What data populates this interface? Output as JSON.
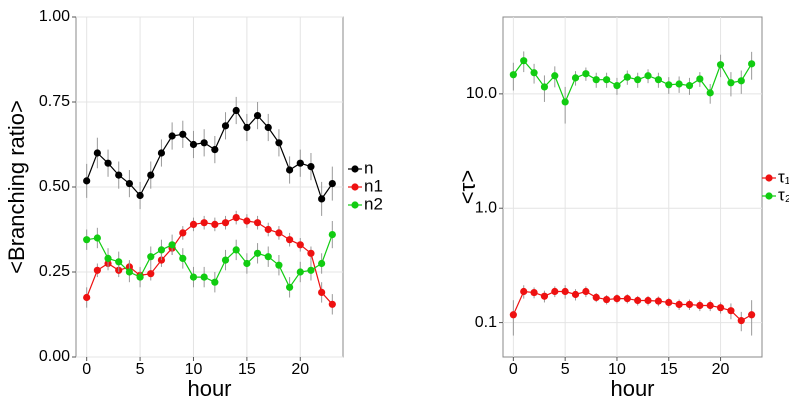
{
  "chart_data": [
    {
      "type": "line",
      "ylabel": "<Branching ratio>",
      "xlabel": "hour",
      "x": [
        0,
        1,
        2,
        3,
        4,
        5,
        6,
        7,
        8,
        9,
        10,
        11,
        12,
        13,
        14,
        15,
        16,
        17,
        18,
        19,
        20,
        21,
        22,
        23
      ],
      "xlim": [
        -1,
        24
      ],
      "xticks": [
        0,
        5,
        10,
        15,
        20
      ],
      "ylim": [
        0,
        1
      ],
      "yticks": [
        {
          "value": 0,
          "label": "0.00"
        },
        {
          "value": 0.25,
          "label": "0.25"
        },
        {
          "value": 0.5,
          "label": "0.50"
        },
        {
          "value": 0.75,
          "label": "0.75"
        },
        {
          "value": 1,
          "label": "1.00"
        }
      ],
      "grid": true,
      "legend": "right",
      "series": [
        {
          "name": "n",
          "color": "#000000",
          "values": [
            0.518,
            0.6,
            0.57,
            0.535,
            0.51,
            0.475,
            0.535,
            0.6,
            0.65,
            0.655,
            0.625,
            0.63,
            0.61,
            0.68,
            0.725,
            0.675,
            0.71,
            0.675,
            0.63,
            0.55,
            0.57,
            0.56,
            0.465,
            0.51
          ],
          "errors": [
            0.05,
            0.045,
            0.04,
            0.04,
            0.04,
            0.04,
            0.04,
            0.04,
            0.04,
            0.04,
            0.04,
            0.04,
            0.04,
            0.04,
            0.04,
            0.04,
            0.04,
            0.04,
            0.04,
            0.04,
            0.04,
            0.04,
            0.05,
            0.05
          ]
        },
        {
          "name": "n1",
          "color": "#ee1111",
          "values": [
            0.175,
            0.255,
            0.275,
            0.255,
            0.265,
            0.24,
            0.245,
            0.285,
            0.32,
            0.365,
            0.39,
            0.395,
            0.39,
            0.395,
            0.41,
            0.4,
            0.395,
            0.375,
            0.365,
            0.345,
            0.33,
            0.305,
            0.19,
            0.155
          ],
          "errors": [
            0.03,
            0.02,
            0.02,
            0.02,
            0.02,
            0.02,
            0.02,
            0.02,
            0.02,
            0.02,
            0.02,
            0.02,
            0.02,
            0.02,
            0.02,
            0.02,
            0.02,
            0.02,
            0.02,
            0.02,
            0.02,
            0.02,
            0.03,
            0.03
          ]
        },
        {
          "name": "n2",
          "color": "#11cc11",
          "values": [
            0.345,
            0.35,
            0.29,
            0.28,
            0.25,
            0.235,
            0.295,
            0.315,
            0.33,
            0.29,
            0.235,
            0.235,
            0.22,
            0.285,
            0.315,
            0.275,
            0.305,
            0.295,
            0.27,
            0.205,
            0.25,
            0.255,
            0.275,
            0.36
          ],
          "errors": [
            0.03,
            0.03,
            0.03,
            0.03,
            0.03,
            0.03,
            0.03,
            0.03,
            0.03,
            0.03,
            0.03,
            0.03,
            0.03,
            0.03,
            0.03,
            0.03,
            0.03,
            0.03,
            0.03,
            0.03,
            0.03,
            0.03,
            0.03,
            0.04
          ]
        }
      ]
    },
    {
      "type": "line",
      "ylabel": "<τ>",
      "xlabel": "hour",
      "x": [
        0,
        1,
        2,
        3,
        4,
        5,
        6,
        7,
        8,
        9,
        10,
        11,
        12,
        13,
        14,
        15,
        16,
        17,
        18,
        19,
        20,
        21,
        22,
        23
      ],
      "xlim": [
        -1,
        24
      ],
      "xticks": [
        0,
        5,
        10,
        15,
        20
      ],
      "ylim": [
        0.05,
        47
      ],
      "log": true,
      "yticks": [
        {
          "value": 0.1,
          "label": "0.1"
        },
        {
          "value": 1,
          "label": "1.0"
        },
        {
          "value": 10,
          "label": "10.0"
        }
      ],
      "grid": true,
      "legend": "right",
      "series": [
        {
          "name": "τ₁",
          "color": "#ee1111",
          "values": [
            0.117,
            0.187,
            0.183,
            0.17,
            0.187,
            0.187,
            0.176,
            0.187,
            0.166,
            0.159,
            0.162,
            0.162,
            0.156,
            0.156,
            0.154,
            0.15,
            0.144,
            0.144,
            0.141,
            0.141,
            0.135,
            0.127,
            0.104,
            0.117
          ],
          "errors": [
            0.04,
            0.025,
            0.02,
            0.02,
            0.02,
            0.025,
            0.02,
            0.02,
            0.015,
            0.015,
            0.015,
            0.015,
            0.015,
            0.015,
            0.015,
            0.015,
            0.015,
            0.015,
            0.015,
            0.015,
            0.015,
            0.02,
            0.02,
            0.04
          ]
        },
        {
          "name": "τ₂",
          "color": "#11cc11",
          "values": [
            14.7,
            19.5,
            15.3,
            11.5,
            14.4,
            8.5,
            13.8,
            15,
            13.3,
            13.3,
            11.8,
            14,
            13.3,
            14.4,
            13.3,
            12,
            12.2,
            11.8,
            13.5,
            10.2,
            18,
            12.5,
            13,
            18.3
          ],
          "errors": [
            4,
            4,
            3,
            3,
            3,
            3,
            2,
            2,
            2,
            2,
            2,
            2,
            2,
            2,
            2,
            2,
            2,
            2,
            2,
            2,
            4,
            3,
            3,
            5
          ]
        }
      ]
    }
  ]
}
